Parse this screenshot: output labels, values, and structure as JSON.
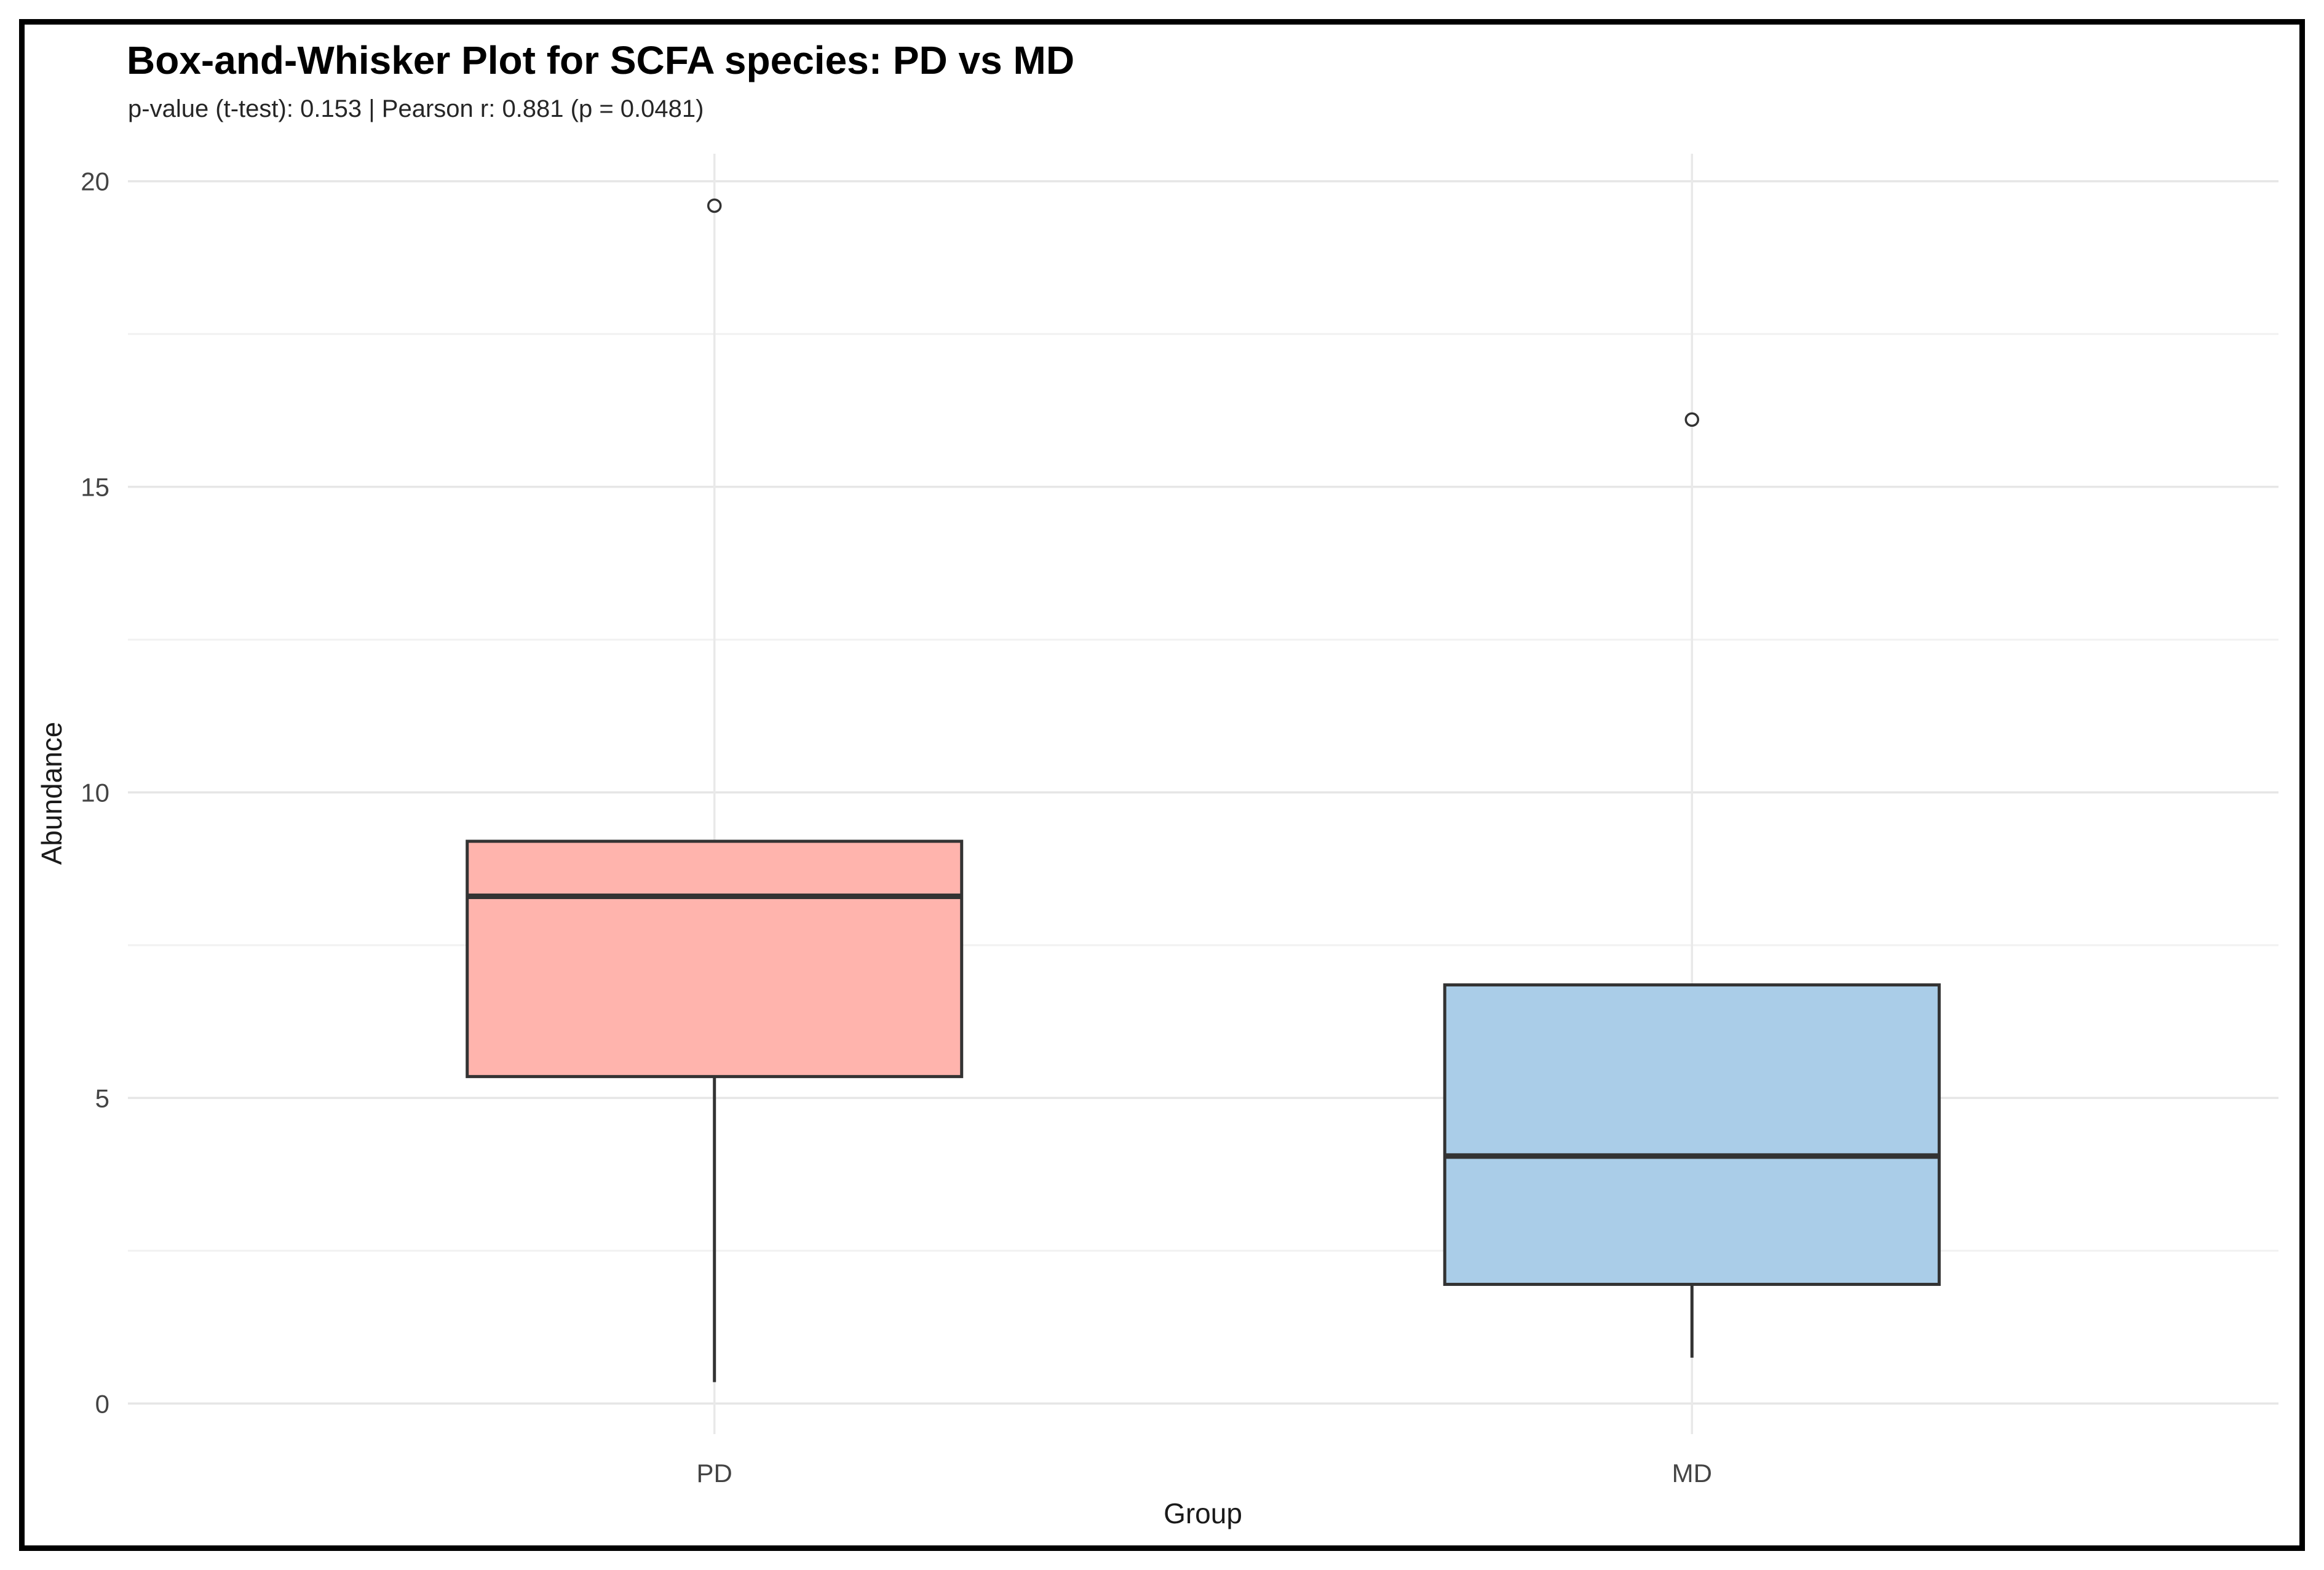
{
  "title": "Box-and-Whisker Plot for SCFA species: PD vs MD",
  "subtitle": "p-value (t-test): 0.153 | Pearson r: 0.881 (p = 0.0481)",
  "chart_data": {
    "type": "boxplot",
    "title": "Box-and-Whisker Plot for SCFA species: PD vs MD",
    "subtitle": "p-value (t-test): 0.153 | Pearson r: 0.881 (p = 0.0481)",
    "xlabel": "Group",
    "ylabel": "Abundance",
    "categories": [
      "PD",
      "MD"
    ],
    "y_ticks": [
      0,
      5,
      10,
      15,
      20
    ],
    "y_minor_ticks": [
      2.5,
      7.5,
      12.5,
      17.5
    ],
    "ylim": [
      -0.5,
      20.45
    ],
    "grid": true,
    "legend": "none",
    "series": [
      {
        "name": "PD",
        "whisker_low": 0.35,
        "q1": 5.35,
        "median": 8.3,
        "q3": 9.2,
        "whisker_high": 9.2,
        "outliers": [
          19.6
        ],
        "fill": "#FFB4AD"
      },
      {
        "name": "MD",
        "whisker_low": 0.75,
        "q1": 1.95,
        "median": 4.05,
        "q3": 6.85,
        "whisker_high": 6.85,
        "outliers": [
          16.1
        ],
        "fill": "#AACDE8"
      }
    ],
    "colors": {
      "box_stroke": "#333333",
      "outlier_stroke": "#333333",
      "pd_fill": "#FFB4AD",
      "md_fill": "#AACDE8"
    }
  }
}
